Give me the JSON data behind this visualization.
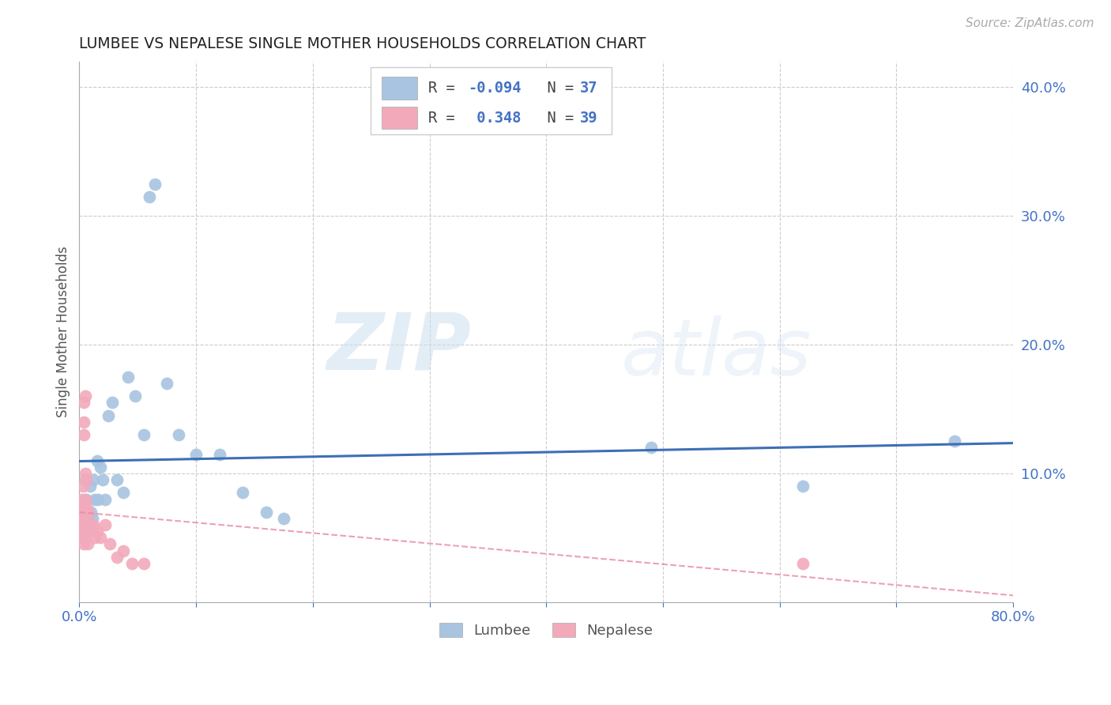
{
  "title": "LUMBEE VS NEPALESE SINGLE MOTHER HOUSEHOLDS CORRELATION CHART",
  "source": "Source: ZipAtlas.com",
  "ylabel": "Single Mother Households",
  "watermark_zip": "ZIP",
  "watermark_atlas": "atlas",
  "xlim": [
    0.0,
    0.8
  ],
  "ylim": [
    0.0,
    0.42
  ],
  "xticks": [
    0.0,
    0.1,
    0.2,
    0.3,
    0.4,
    0.5,
    0.6,
    0.7,
    0.8
  ],
  "yticks_right": [
    0.1,
    0.2,
    0.3,
    0.4
  ],
  "ytick_labels_right": [
    "10.0%",
    "20.0%",
    "30.0%",
    "40.0%"
  ],
  "lumbee_color": "#a8c4e0",
  "nepalese_color": "#f2aabb",
  "lumbee_line_color": "#3d6fb5",
  "nepalese_line_color": "#e88aa0",
  "grid_color": "#cccccc",
  "R_lumbee": -0.094,
  "N_lumbee": 37,
  "R_nepalese": 0.348,
  "N_nepalese": 39,
  "lumbee_scatter_x": [
    0.003,
    0.004,
    0.005,
    0.005,
    0.006,
    0.007,
    0.007,
    0.008,
    0.009,
    0.01,
    0.011,
    0.012,
    0.013,
    0.015,
    0.016,
    0.018,
    0.02,
    0.022,
    0.025,
    0.028,
    0.032,
    0.038,
    0.042,
    0.048,
    0.055,
    0.06,
    0.065,
    0.075,
    0.085,
    0.1,
    0.12,
    0.14,
    0.16,
    0.175,
    0.49,
    0.62,
    0.75
  ],
  "lumbee_scatter_y": [
    0.075,
    0.068,
    0.095,
    0.07,
    0.08,
    0.06,
    0.065,
    0.055,
    0.09,
    0.07,
    0.065,
    0.095,
    0.08,
    0.11,
    0.08,
    0.105,
    0.095,
    0.08,
    0.145,
    0.155,
    0.095,
    0.085,
    0.175,
    0.16,
    0.13,
    0.315,
    0.325,
    0.17,
    0.13,
    0.115,
    0.115,
    0.085,
    0.07,
    0.065,
    0.12,
    0.09,
    0.125
  ],
  "nepalese_scatter_x": [
    0.001,
    0.001,
    0.001,
    0.002,
    0.002,
    0.002,
    0.002,
    0.003,
    0.003,
    0.003,
    0.003,
    0.003,
    0.004,
    0.004,
    0.004,
    0.004,
    0.005,
    0.005,
    0.005,
    0.005,
    0.006,
    0.006,
    0.007,
    0.007,
    0.008,
    0.009,
    0.01,
    0.011,
    0.012,
    0.013,
    0.015,
    0.018,
    0.022,
    0.026,
    0.032,
    0.038,
    0.045,
    0.055,
    0.62
  ],
  "nepalese_scatter_y": [
    0.06,
    0.055,
    0.05,
    0.08,
    0.07,
    0.06,
    0.055,
    0.09,
    0.075,
    0.065,
    0.055,
    0.05,
    0.155,
    0.14,
    0.13,
    0.045,
    0.16,
    0.1,
    0.08,
    0.065,
    0.095,
    0.075,
    0.055,
    0.045,
    0.07,
    0.06,
    0.06,
    0.055,
    0.06,
    0.05,
    0.055,
    0.05,
    0.06,
    0.045,
    0.035,
    0.04,
    0.03,
    0.03,
    0.03
  ]
}
